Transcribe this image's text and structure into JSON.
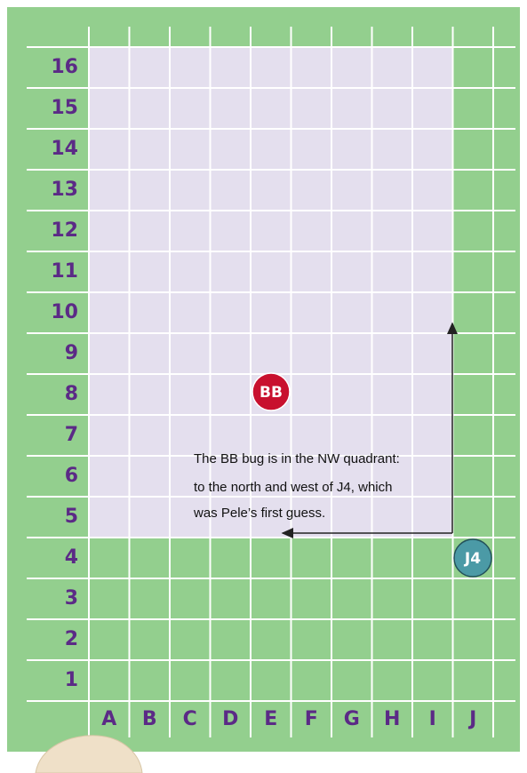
{
  "board": {
    "rows": [
      "16",
      "15",
      "14",
      "13",
      "12",
      "11",
      "10",
      "9",
      "8",
      "7",
      "6",
      "5",
      "4",
      "3",
      "2",
      "1"
    ],
    "columns": [
      "A",
      "B",
      "C",
      "D",
      "E",
      "F",
      "G",
      "H",
      "I",
      "J"
    ],
    "markers": [
      {
        "label": "BB"
      },
      {
        "label": "J4"
      }
    ],
    "note": [
      "The BB bug is in the NW quadrant:",
      "to the north and west of J4, which",
      "was Pele’s first guess."
    ]
  }
}
